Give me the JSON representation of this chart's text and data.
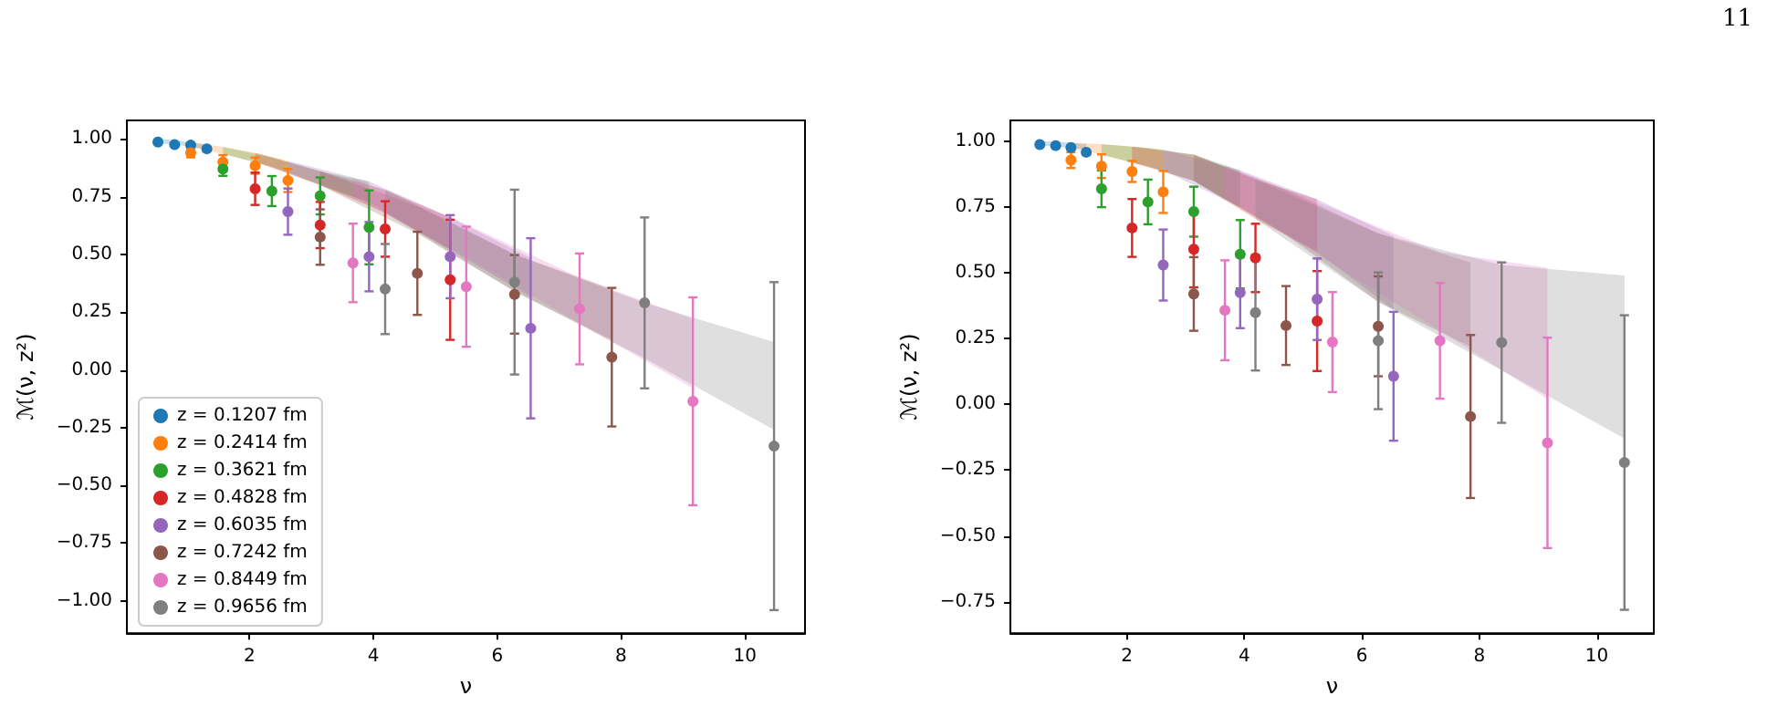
{
  "chart_data": [
    {
      "type": "scatter",
      "xlabel": "ν",
      "ylabel": "ℳ(ν, z²)",
      "legend": "bottom left",
      "marker": "circle",
      "xlim": [
        0.02,
        10.97
      ],
      "xticks": [
        2,
        4,
        6,
        8,
        10
      ],
      "ylim": [
        -1.14,
        1.08
      ],
      "yticks": [
        {
          "value": -1,
          "label": "−1.00"
        },
        {
          "value": -0.75,
          "label": "−0.75"
        },
        {
          "value": -0.5,
          "label": "−0.50"
        },
        {
          "value": -0.25,
          "label": "−0.25"
        },
        {
          "value": 0,
          "label": "0.00"
        },
        {
          "value": 0.25,
          "label": "0.25"
        },
        {
          "value": 0.5,
          "label": "0.50"
        },
        {
          "value": 0.75,
          "label": "0.75"
        },
        {
          "value": 1,
          "label": "1.00"
        }
      ],
      "series": [
        {
          "name": "z = 0.1207 fm",
          "color": "#1f77b4",
          "x": [
            0.52,
            0.79,
            1.05,
            1.31
          ],
          "values": [
            0.986,
            0.975,
            0.973,
            0.957
          ],
          "errors": [
            0.005,
            0.005,
            0.006,
            0.007
          ],
          "lower": [
            0.98,
            0.975,
            0.965,
            0.955
          ],
          "upper": [
            1.0,
            0.995,
            0.985,
            0.975
          ]
        },
        {
          "name": "z = 0.2414 fm",
          "color": "#ff7f0e",
          "x": [
            1.05,
            1.57,
            2.09,
            2.62
          ],
          "values": [
            0.94,
            0.9,
            0.884,
            0.82
          ],
          "errors": [
            0.02,
            0.03,
            0.035,
            0.05
          ],
          "lower": [
            0.965,
            0.935,
            0.9,
            0.855
          ],
          "upper": [
            0.985,
            0.965,
            0.94,
            0.905
          ]
        },
        {
          "name": "z = 0.3621 fm",
          "color": "#2ca02c",
          "x": [
            1.57,
            2.36,
            3.14,
            3.93
          ],
          "values": [
            0.87,
            0.774,
            0.753,
            0.617
          ],
          "errors": [
            0.03,
            0.065,
            0.08,
            0.16
          ],
          "lower": [
            0.935,
            0.88,
            0.8,
            0.725
          ],
          "upper": [
            0.965,
            0.92,
            0.86,
            0.815
          ]
        },
        {
          "name": "z = 0.4828 fm",
          "color": "#d62728",
          "x": [
            2.09,
            3.14,
            4.19,
            5.24
          ],
          "values": [
            0.784,
            0.627,
            0.61,
            0.39
          ],
          "errors": [
            0.07,
            0.1,
            0.12,
            0.26
          ],
          "lower": [
            0.9,
            0.8,
            0.68,
            0.52
          ],
          "upper": [
            0.94,
            0.86,
            0.78,
            0.66
          ]
        },
        {
          "name": "z = 0.6035 fm",
          "color": "#9467bd",
          "x": [
            2.62,
            3.93,
            5.24,
            6.54
          ],
          "values": [
            0.685,
            0.49,
            0.49,
            0.18
          ],
          "errors": [
            0.1,
            0.15,
            0.18,
            0.39
          ],
          "lower": [
            0.855,
            0.725,
            0.52,
            0.315
          ],
          "upper": [
            0.905,
            0.815,
            0.66,
            0.485
          ]
        },
        {
          "name": "z = 0.7242 fm",
          "color": "#8c564b",
          "x": [
            3.14,
            4.71,
            6.28,
            7.85
          ],
          "values": [
            0.575,
            0.418,
            0.327,
            0.055
          ],
          "errors": [
            0.12,
            0.18,
            0.17,
            0.3
          ],
          "lower": [
            0.8,
            0.59,
            0.34,
            0.13
          ],
          "upper": [
            0.86,
            0.71,
            0.5,
            0.35
          ]
        },
        {
          "name": "z = 0.8449 fm",
          "color": "#e377c2",
          "x": [
            3.67,
            5.5,
            7.33,
            9.16
          ],
          "values": [
            0.463,
            0.36,
            0.264,
            -0.136
          ],
          "errors": [
            0.17,
            0.26,
            0.24,
            0.45
          ],
          "lower": [
            0.75,
            0.49,
            0.2,
            -0.08
          ],
          "upper": [
            0.83,
            0.63,
            0.4,
            0.22
          ]
        },
        {
          "name": "z = 0.9656 fm",
          "color": "#7f7f7f",
          "x": [
            4.19,
            6.28,
            8.38,
            10.47
          ],
          "values": [
            0.35,
            0.38,
            0.29,
            -0.33
          ],
          "errors": [
            0.195,
            0.4,
            0.37,
            0.71
          ],
          "lower": [
            0.68,
            0.34,
            0.05,
            -0.26
          ],
          "upper": [
            0.78,
            0.5,
            0.29,
            0.12
          ]
        }
      ]
    },
    {
      "type": "scatter",
      "xlabel": "ν",
      "ylabel": "ℳ(ν, z²)",
      "marker": "circle",
      "annotations": [
        "11"
      ],
      "xlim": [
        0.02,
        10.97
      ],
      "xticks": [
        2,
        4,
        6,
        8,
        10
      ],
      "ylim": [
        -0.87,
        1.08
      ],
      "yticks": [
        {
          "value": -0.75,
          "label": "−0.75"
        },
        {
          "value": -0.5,
          "label": "−0.50"
        },
        {
          "value": -0.25,
          "label": "−0.25"
        },
        {
          "value": 0,
          "label": "0.00"
        },
        {
          "value": 0.25,
          "label": "0.25"
        },
        {
          "value": 0.5,
          "label": "0.50"
        },
        {
          "value": 0.75,
          "label": "0.75"
        },
        {
          "value": 1,
          "label": "1.00"
        }
      ],
      "series": [
        {
          "color": "#1f77b4",
          "x": [
            0.52,
            0.79,
            1.05,
            1.31
          ],
          "values": [
            0.988,
            0.984,
            0.977,
            0.959
          ],
          "errors": [
            0.005,
            0.005,
            0.006,
            0.008
          ],
          "lower": [
            0.985,
            0.98,
            0.975,
            0.97
          ],
          "upper": [
            1.0,
            1.0,
            0.995,
            0.99
          ]
        },
        {
          "color": "#ff7f0e",
          "x": [
            1.05,
            1.57,
            2.09,
            2.62
          ],
          "values": [
            0.929,
            0.906,
            0.886,
            0.808
          ],
          "errors": [
            0.03,
            0.045,
            0.04,
            0.08
          ],
          "lower": [
            0.975,
            0.95,
            0.92,
            0.89
          ],
          "upper": [
            0.995,
            0.99,
            0.98,
            0.97
          ]
        },
        {
          "color": "#2ca02c",
          "x": [
            1.57,
            2.36,
            3.14,
            3.93
          ],
          "values": [
            0.82,
            0.77,
            0.733,
            0.571
          ],
          "errors": [
            0.07,
            0.085,
            0.095,
            0.13
          ],
          "lower": [
            0.95,
            0.905,
            0.85,
            0.75
          ],
          "upper": [
            0.99,
            0.975,
            0.95,
            0.89
          ]
        },
        {
          "color": "#d62728",
          "x": [
            2.09,
            3.14,
            4.19,
            5.24
          ],
          "values": [
            0.671,
            0.59,
            0.557,
            0.317
          ],
          "errors": [
            0.11,
            0.145,
            0.13,
            0.19
          ],
          "lower": [
            0.92,
            0.85,
            0.705,
            0.58
          ],
          "upper": [
            0.98,
            0.95,
            0.855,
            0.78
          ]
        },
        {
          "color": "#9467bd",
          "x": [
            2.62,
            3.93,
            5.24,
            6.54
          ],
          "values": [
            0.53,
            0.425,
            0.4,
            0.107
          ],
          "errors": [
            0.135,
            0.135,
            0.155,
            0.245
          ],
          "lower": [
            0.89,
            0.75,
            0.58,
            0.36
          ],
          "upper": [
            0.97,
            0.89,
            0.78,
            0.64
          ]
        },
        {
          "color": "#8c564b",
          "x": [
            3.14,
            4.71,
            6.28,
            7.85
          ],
          "values": [
            0.42,
            0.3,
            0.297,
            -0.046
          ],
          "errors": [
            0.14,
            0.15,
            0.19,
            0.31
          ],
          "lower": [
            0.85,
            0.645,
            0.39,
            0.22
          ],
          "upper": [
            0.95,
            0.815,
            0.65,
            0.54
          ]
        },
        {
          "color": "#e377c2",
          "x": [
            3.67,
            5.5,
            7.33,
            9.16
          ],
          "values": [
            0.358,
            0.237,
            0.242,
            -0.146
          ],
          "errors": [
            0.19,
            0.19,
            0.22,
            0.4
          ],
          "lower": [
            0.79,
            0.535,
            0.28,
            0.02
          ],
          "upper": [
            0.91,
            0.745,
            0.58,
            0.52
          ]
        },
        {
          "color": "#7f7f7f",
          "x": [
            4.19,
            6.28,
            8.38,
            10.47
          ],
          "values": [
            0.349,
            0.242,
            0.235,
            -0.221
          ],
          "errors": [
            0.22,
            0.26,
            0.305,
            0.56
          ],
          "lower": [
            0.705,
            0.39,
            0.13,
            -0.13
          ],
          "upper": [
            0.855,
            0.65,
            0.53,
            0.49
          ]
        }
      ]
    }
  ]
}
